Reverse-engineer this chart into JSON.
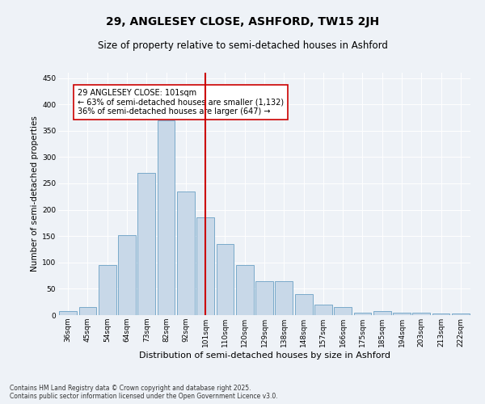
{
  "title1": "29, ANGLESEY CLOSE, ASHFORD, TW15 2JH",
  "title2": "Size of property relative to semi-detached houses in Ashford",
  "xlabel": "Distribution of semi-detached houses by size in Ashford",
  "ylabel": "Number of semi-detached properties",
  "categories": [
    "36sqm",
    "45sqm",
    "54sqm",
    "64sqm",
    "73sqm",
    "82sqm",
    "92sqm",
    "101sqm",
    "110sqm",
    "120sqm",
    "129sqm",
    "138sqm",
    "148sqm",
    "157sqm",
    "166sqm",
    "175sqm",
    "185sqm",
    "194sqm",
    "203sqm",
    "213sqm",
    "222sqm"
  ],
  "values": [
    8,
    15,
    95,
    152,
    270,
    370,
    235,
    185,
    135,
    95,
    65,
    65,
    40,
    20,
    15,
    5,
    8,
    5,
    5,
    3,
    3
  ],
  "bar_color": "#c8d8e8",
  "bar_edge_color": "#7aaaca",
  "vline_color": "#cc0000",
  "annotation_text": "29 ANGLESEY CLOSE: 101sqm\n← 63% of semi-detached houses are smaller (1,132)\n36% of semi-detached houses are larger (647) →",
  "annotation_box_color": "#ffffff",
  "annotation_box_edge": "#cc0000",
  "ylim": [
    0,
    460
  ],
  "yticks": [
    0,
    50,
    100,
    150,
    200,
    250,
    300,
    350,
    400,
    450
  ],
  "background_color": "#eef2f7",
  "footer": "Contains HM Land Registry data © Crown copyright and database right 2025.\nContains public sector information licensed under the Open Government Licence v3.0.",
  "title1_fontsize": 10,
  "title2_fontsize": 8.5,
  "xlabel_fontsize": 8,
  "ylabel_fontsize": 7.5,
  "tick_fontsize": 6.5,
  "annotation_fontsize": 7,
  "footer_fontsize": 5.5
}
